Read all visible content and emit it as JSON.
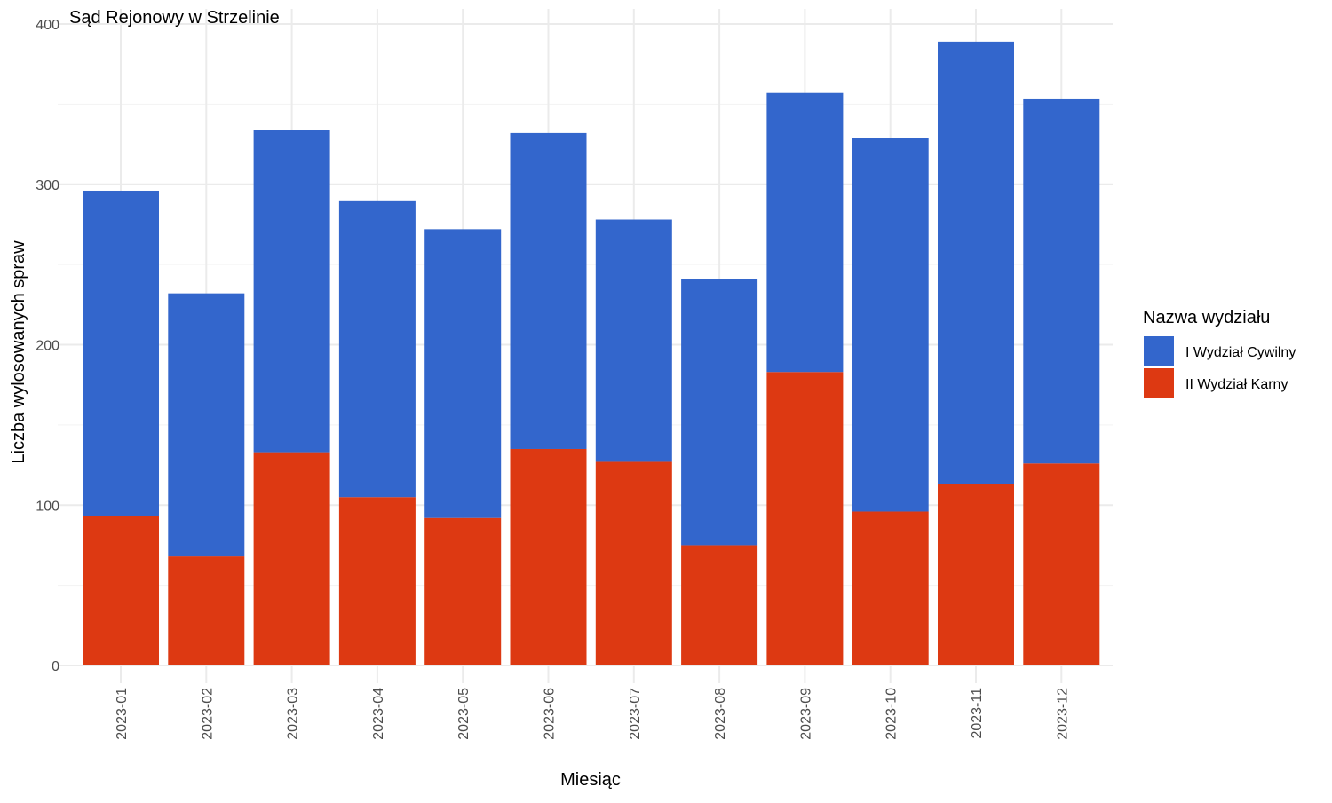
{
  "chart_data": {
    "type": "bar",
    "stacked": true,
    "title": "Sąd Rejonowy w Strzelinie",
    "xlabel": "Miesiąc",
    "ylabel": "Liczba wylosowanych spraw",
    "ylim": [
      0,
      400
    ],
    "yticks": [
      0,
      100,
      200,
      300,
      400
    ],
    "grid": true,
    "legend_title": "Nazwa wydziału",
    "legend_position": "right",
    "categories": [
      "2023-01",
      "2023-02",
      "2023-03",
      "2023-04",
      "2023-05",
      "2023-06",
      "2023-07",
      "2023-08",
      "2023-09",
      "2023-10",
      "2023-11",
      "2023-12"
    ],
    "series": [
      {
        "name": "II Wydział Karny",
        "color": "#dd3912",
        "values": [
          93,
          68,
          133,
          105,
          92,
          135,
          127,
          75,
          183,
          96,
          113,
          126
        ]
      },
      {
        "name": "I Wydział Cywilny",
        "color": "#3366cc",
        "values": [
          203,
          164,
          201,
          185,
          180,
          197,
          151,
          166,
          174,
          233,
          276,
          227
        ]
      }
    ],
    "legend_order": [
      "I Wydział Cywilny",
      "II Wydział Karny"
    ]
  }
}
